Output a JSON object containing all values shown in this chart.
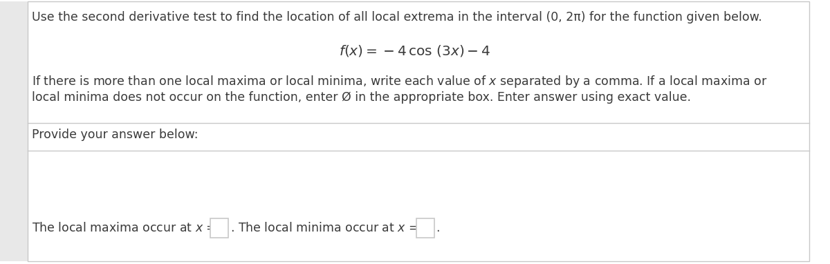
{
  "bg_color": "#ffffff",
  "border_color": "#c8c8c8",
  "left_strip_color": "#e8e8e8",
  "text_color": "#3a3a3a",
  "line1": "Use the second derivative test to find the location of all local extrema in the interval (0, 2π) for the function given below.",
  "formula": "$f(x) = -4\\,\\cos\\,(3x) - 4$",
  "line3": "If there is more than one local maxima or local minima, write each value of $x$ separated by a comma. If a local maxima or",
  "line4": "local minima does not occur on the function, enter Ø in the appropriate box. Enter answer using exact value.",
  "provide_text": "Provide your answer below:",
  "font_size_body": 12.5,
  "font_size_formula": 14.5
}
